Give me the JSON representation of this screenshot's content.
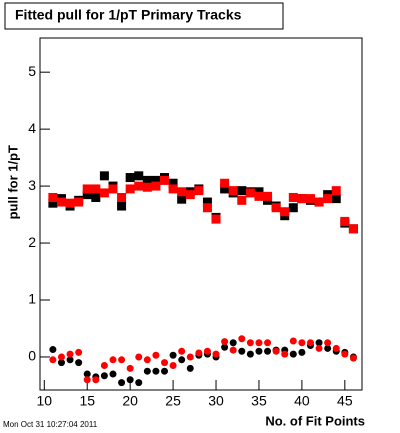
{
  "chart_data": {
    "type": "scatter",
    "title": "Fitted pull for 1/pT Primary Tracks",
    "xlabel": "No. of Fit Points",
    "ylabel": "pull for 1/pT",
    "timestamp": "Mon Oct 31 10:27:04 2011",
    "x": [
      11,
      12,
      13,
      14,
      15,
      16,
      17,
      18,
      19,
      20,
      21,
      22,
      23,
      24,
      25,
      26,
      27,
      28,
      29,
      30,
      31,
      32,
      33,
      34,
      35,
      36,
      37,
      38,
      39,
      40,
      41,
      42,
      43,
      44,
      45,
      46
    ],
    "series": [
      {
        "color": "#000000",
        "marker": "square",
        "values": [
          2.7,
          2.78,
          2.65,
          2.75,
          2.85,
          2.8,
          3.18,
          3.0,
          2.65,
          3.15,
          3.18,
          3.1,
          3.1,
          3.15,
          3.05,
          2.77,
          2.9,
          2.95,
          2.72,
          2.45,
          2.95,
          2.88,
          2.92,
          2.9,
          2.9,
          2.75,
          2.65,
          2.48,
          2.62,
          2.78,
          2.75,
          2.72,
          2.85,
          2.78,
          2.35,
          2.25
        ]
      },
      {
        "color": "#ff0000",
        "marker": "square",
        "values": [
          2.8,
          2.72,
          2.7,
          2.72,
          2.95,
          2.95,
          2.88,
          2.95,
          2.8,
          2.95,
          3.0,
          2.98,
          3.0,
          3.1,
          2.95,
          2.9,
          2.85,
          2.92,
          2.62,
          2.42,
          3.05,
          2.92,
          2.75,
          2.88,
          2.82,
          2.82,
          2.62,
          2.55,
          2.8,
          2.78,
          2.78,
          2.72,
          2.78,
          2.92,
          2.38,
          2.25
        ]
      },
      {
        "color": "#000000",
        "marker": "circle",
        "values": [
          0.13,
          -0.1,
          -0.05,
          -0.1,
          -0.3,
          -0.35,
          -0.33,
          -0.3,
          -0.45,
          -0.4,
          -0.45,
          -0.25,
          -0.25,
          -0.25,
          0.03,
          -0.05,
          -0.2,
          0.03,
          0.05,
          0.0,
          0.17,
          0.25,
          0.1,
          0.05,
          0.1,
          0.1,
          0.12,
          0.12,
          0.05,
          0.08,
          0.2,
          0.25,
          0.15,
          0.1,
          0.08,
          0.0
        ]
      },
      {
        "color": "#ff0000",
        "marker": "circle",
        "values": [
          -0.05,
          0.0,
          0.05,
          0.08,
          -0.4,
          -0.4,
          -0.15,
          -0.05,
          -0.05,
          -0.2,
          0.0,
          -0.05,
          0.03,
          -0.1,
          -0.15,
          0.1,
          0.0,
          0.07,
          0.1,
          0.05,
          0.27,
          0.12,
          0.32,
          0.25,
          0.25,
          0.25,
          0.1,
          0.05,
          0.28,
          0.25,
          0.25,
          0.15,
          0.25,
          0.15,
          0.05,
          -0.02
        ]
      }
    ],
    "xlim": [
      9.5,
      47
    ],
    "xticks": [
      10,
      15,
      20,
      25,
      30,
      35,
      40,
      45
    ],
    "ylim": [
      -0.58,
      5.6
    ],
    "yticks": [
      0,
      1,
      2,
      3,
      4,
      5
    ]
  }
}
